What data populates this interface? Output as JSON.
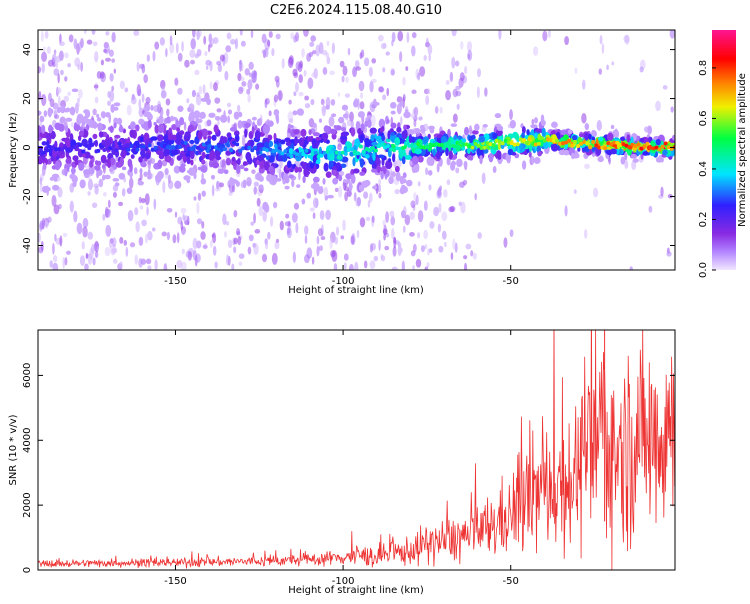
{
  "title": "C2E6.2024.115.08.40.G10",
  "chart_data": [
    {
      "type": "heatmap",
      "title": "C2E6.2024.115.08.40.G10",
      "xlabel": "Height of straight line (km)",
      "ylabel": "Frequency (Hz)",
      "xlim": [
        -191,
        -1
      ],
      "ylim": [
        -50,
        48
      ],
      "xticks": [
        -150,
        -100,
        -50
      ],
      "yticks": [
        -40,
        -20,
        0,
        20,
        40
      ],
      "grid": false,
      "colorbar": {
        "label": "Normalized spectral amplitude",
        "range": [
          0.0,
          0.95
        ],
        "ticks": [
          0.0,
          0.2,
          0.4,
          0.6,
          0.8
        ],
        "colormap": [
          "#f0e6ff",
          "#8a2be2",
          "#3020ff",
          "#00e5ff",
          "#00ff40",
          "#f0f000",
          "#ff8000",
          "#ff0000",
          "#ff1493"
        ]
      },
      "ridge": {
        "description_free": true,
        "heights_km": [
          -190,
          -170,
          -150,
          -130,
          -110,
          -100,
          -90,
          -80,
          -70,
          -60,
          -50,
          -40,
          -30,
          -20,
          -10,
          -1
        ],
        "center_frequency_hz": [
          0,
          0,
          1,
          0,
          -3,
          -2,
          0,
          0,
          1,
          1,
          2,
          3,
          2,
          1,
          0,
          0
        ],
        "peak_amplitude": [
          0.25,
          0.25,
          0.3,
          0.3,
          0.4,
          0.45,
          0.45,
          0.5,
          0.55,
          0.6,
          0.65,
          0.7,
          0.75,
          0.8,
          0.85,
          0.85
        ]
      }
    },
    {
      "type": "line",
      "xlabel": "Height of straight line (km)",
      "ylabel": "SNR (10 * v/v)",
      "xlim": [
        -191,
        -1
      ],
      "ylim": [
        0,
        7400
      ],
      "xticks": [
        -150,
        -100,
        -50
      ],
      "yticks": [
        0,
        2000,
        4000,
        6000
      ],
      "grid": false,
      "color": "#ee3333",
      "x": [
        -190,
        -180,
        -170,
        -160,
        -150,
        -140,
        -130,
        -120,
        -110,
        -100,
        -95,
        -90,
        -85,
        -80,
        -75,
        -70,
        -65,
        -60,
        -55,
        -50,
        -45,
        -40,
        -35,
        -30,
        -25,
        -22,
        -20,
        -15,
        -10,
        -5,
        -1
      ],
      "y": [
        200,
        200,
        220,
        220,
        230,
        250,
        260,
        280,
        320,
        400,
        450,
        400,
        500,
        600,
        800,
        900,
        1000,
        1100,
        1400,
        1700,
        2200,
        2500,
        2700,
        3000,
        3500,
        5000,
        3500,
        3800,
        4100,
        4300,
        4500
      ]
    }
  ]
}
